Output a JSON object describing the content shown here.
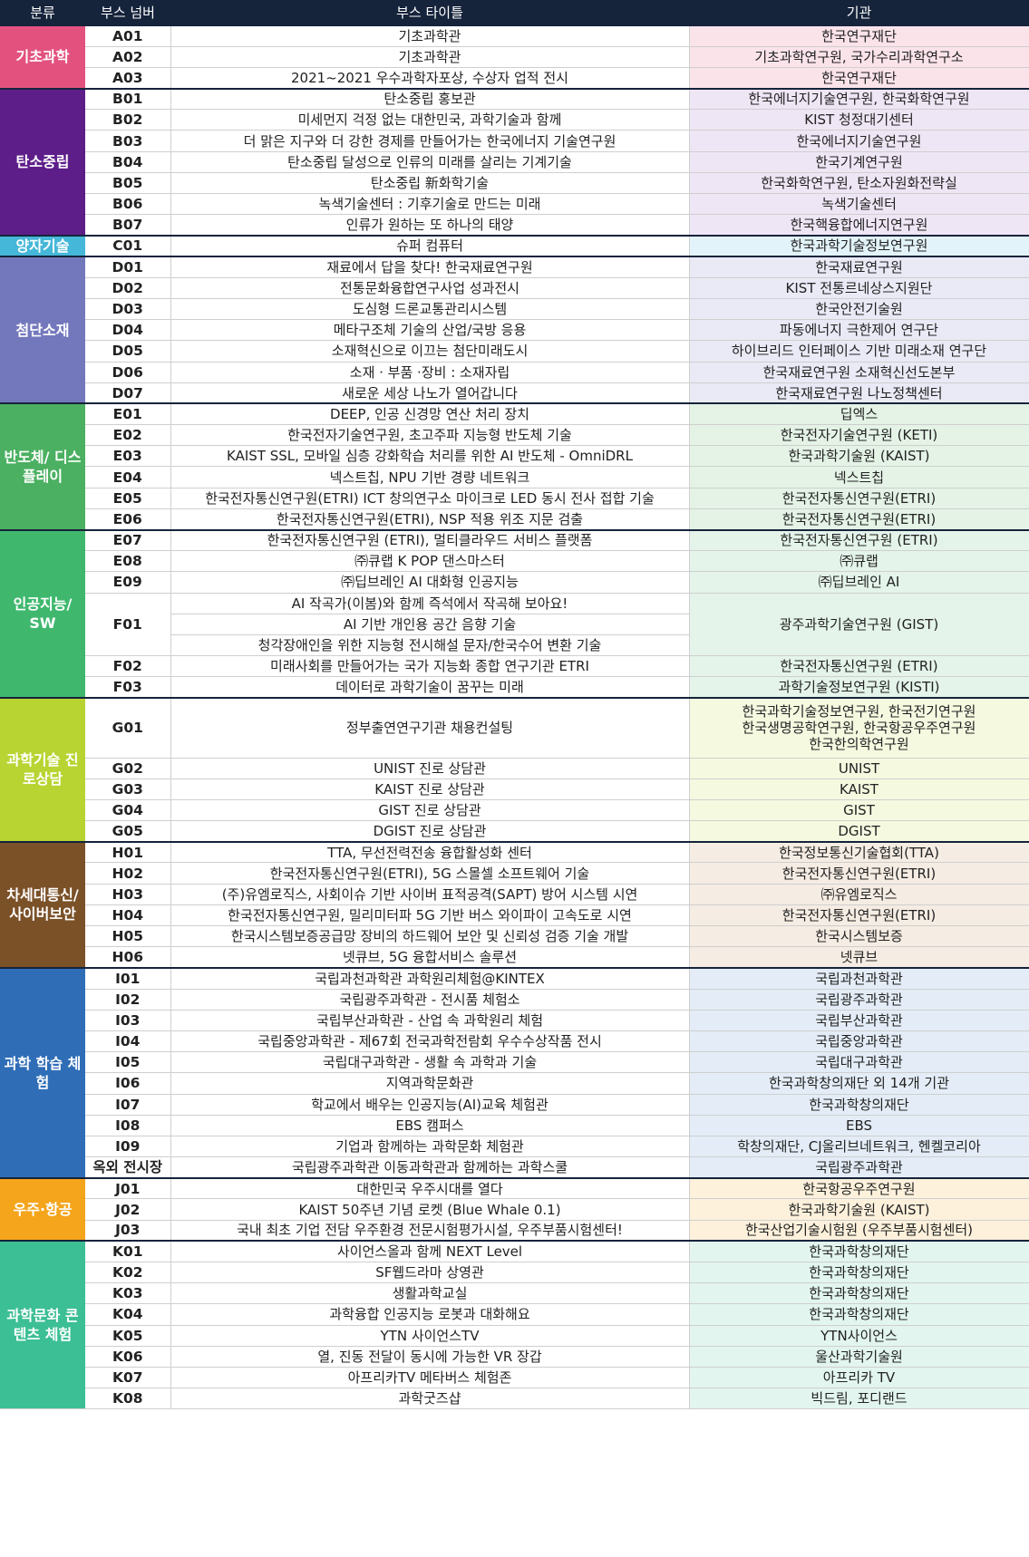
{
  "header": {
    "category": "분류",
    "booth_no": "부스 넘버",
    "booth_title": "부스 타이틀",
    "org": "기관"
  },
  "groups": [
    {
      "name": "기초과학",
      "color": "#e3527f",
      "tint": "#fbe3ea",
      "rows": [
        {
          "no": "A01",
          "title": "기초과학관",
          "org": "한국연구재단"
        },
        {
          "no": "A02",
          "title": "기초과학관",
          "org": "기초과학연구원, 국가수리과학연구소"
        },
        {
          "no": "A03",
          "title": "2021~2021 우수과학자포상, 수상자 업적 전시",
          "org": "한국연구재단"
        }
      ]
    },
    {
      "name": "탄소중립",
      "color": "#5e1e8a",
      "tint": "#efe6f5",
      "rows": [
        {
          "no": "B01",
          "title": "탄소중립 홍보관",
          "org": "한국에너지기술연구원, 한국화학연구원"
        },
        {
          "no": "B02",
          "title": "미세먼지 걱정 없는 대한민국, 과학기술과 함께",
          "org": "KIST 청정대기센터"
        },
        {
          "no": "B03",
          "title": "더 맑은 지구와 더 강한 경제를 만들어가는 한국에너지 기술연구원",
          "org": "한국에너지기술연구원"
        },
        {
          "no": "B04",
          "title": "탄소중립 달성으로 인류의 미래를 살리는 기계기술",
          "org": "한국기계연구원"
        },
        {
          "no": "B05",
          "title": "탄소중립 新화학기술",
          "org": "한국화학연구원, 탄소자원화전략실"
        },
        {
          "no": "B06",
          "title": "녹색기술센터 : 기후기술로 만드는 미래",
          "org": "녹색기술센터"
        },
        {
          "no": "B07",
          "title": "인류가 원하는 또 하나의 태양",
          "org": "한국핵융합에너지연구원"
        }
      ]
    },
    {
      "name": "양자기술",
      "color": "#45b7d8",
      "tint": "#e2f3fa",
      "rows": [
        {
          "no": "C01",
          "title": "슈퍼 컴퓨터",
          "org": "한국과학기술정보연구원"
        }
      ]
    },
    {
      "name": "첨단소재",
      "color": "#7378bd",
      "tint": "#e9eaf6",
      "rows": [
        {
          "no": "D01",
          "title": "재료에서 답을 찾다! 한국재료연구원",
          "org": "한국재료연구원"
        },
        {
          "no": "D02",
          "title": "전통문화융합연구사업 성과전시",
          "org": "KIST 전통르네상스지원단"
        },
        {
          "no": "D03",
          "title": "도심형 드론교통관리시스템",
          "org": "한국안전기술원"
        },
        {
          "no": "D04",
          "title": "메타구조체 기술의 산업/국방 응용",
          "org": "파동에너지 극한제어 연구단"
        },
        {
          "no": "D05",
          "title": "소재혁신으로 이끄는 첨단미래도시",
          "org": "하이브리드 인터페이스 기반 미래소재 연구단"
        },
        {
          "no": "D06",
          "title": "소재 · 부품 ·장비 : 소재자립",
          "org": "한국재료연구원 소재혁신선도본부"
        },
        {
          "no": "D07",
          "title": "새로운 세상 나노가 열어갑니다",
          "org": "한국재료연구원 나노정책센터"
        }
      ]
    },
    {
      "name": "반도체/\n디스플레이",
      "color": "#4bb061",
      "tint": "#e4f3e6",
      "rows": [
        {
          "no": "E01",
          "title": "DEEP, 인공 신경망 연산 처리 장치",
          "org": "딥엑스"
        },
        {
          "no": "E02",
          "title": "한국전자기술연구원, 초고주파 지능형 반도체 기술",
          "org": "한국전자기술연구원 (KETI)"
        },
        {
          "no": "E03",
          "title": "KAIST SSL, 모바일 심층 강화학습 처리를 위한 AI 반도체 - OmniDRL",
          "org": "한국과학기술원 (KAIST)"
        },
        {
          "no": "E04",
          "title": "넥스트칩, NPU 기반 경량 네트워크",
          "org": "넥스트칩"
        },
        {
          "no": "E05",
          "title": "한국전자통신연구원(ETRI) ICT 창의연구소 마이크로 LED 동시 전사 접합 기술",
          "org": "한국전자통신연구원(ETRI)"
        },
        {
          "no": "E06",
          "title": "한국전자통신연구원(ETRI), NSP 적용 위조 지문 검출",
          "org": "한국전자통신연구원(ETRI)"
        }
      ]
    },
    {
      "name": "인공지능/\nSW",
      "color": "#3fb86e",
      "tint": "#e4f4ea",
      "rows": [
        {
          "no": "E07",
          "title": "한국전자통신연구원 (ETRI), 멀티클라우드 서비스 플랫폼",
          "org": "한국전자통신연구원 (ETRI)"
        },
        {
          "no": "E08",
          "title": "㈜큐랩 K POP 댄스마스터",
          "org": "㈜큐랩"
        },
        {
          "no": "E09",
          "title": "㈜딥브레인 AI 대화형 인공지능",
          "org": "㈜딥브레인 AI"
        },
        {
          "no": "F01",
          "titles": [
            "AI 작곡가(이봄)와 함께 즉석에서 작곡해 보아요!",
            "AI 기반 개인용 공간 음향 기술",
            "청각장애인을 위한 지능형 전시해설 문자/한국수어 변환 기술"
          ],
          "org": "광주과학기술연구원 (GIST)"
        },
        {
          "no": "F02",
          "title": "미래사회를 만들어가는 국가 지능화 종합 연구기관 ETRI",
          "org": "한국전자통신연구원 (ETRI)"
        },
        {
          "no": "F03",
          "title": "데이터로 과학기술이 꿈꾸는 미래",
          "org": "과학기술정보연구원 (KISTI)"
        }
      ]
    },
    {
      "name": "과학기술\n진로상담",
      "color": "#b8d432",
      "tint": "#f5f9e0",
      "rows": [
        {
          "no": "G01",
          "title": "정부출연연구기관 채용컨설팅",
          "org": "한국과학기술정보연구원, 한국전기연구원\n한국생명공학연구원, 한국항공우주연구원\n한국한의학연구원",
          "tall": true
        },
        {
          "no": "G02",
          "title": "UNIST 진로 상담관",
          "org": "UNIST"
        },
        {
          "no": "G03",
          "title": "KAIST 진로 상담관",
          "org": "KAIST"
        },
        {
          "no": "G04",
          "title": "GIST 진로 상담관",
          "org": "GIST"
        },
        {
          "no": "G05",
          "title": "DGIST 진로 상담관",
          "org": "DGIST"
        }
      ]
    },
    {
      "name": "차세대통신/\n사이버보안",
      "color": "#7b5128",
      "tint": "#f5ece3",
      "rows": [
        {
          "no": "H01",
          "title": "TTA, 무선전력전송 융합활성화 센터",
          "org": "한국정보통신기술협회(TTA)"
        },
        {
          "no": "H02",
          "title": "한국전자통신연구원(ETRI), 5G 스몰셀 소프트웨어 기술",
          "org": "한국전자통신연구원(ETRI)"
        },
        {
          "no": "H03",
          "title": "(주)유엠로직스, 사회이슈 기반 사이버 표적공격(SAPT) 방어 시스템 시연",
          "org": "㈜유엠로직스"
        },
        {
          "no": "H04",
          "title": "한국전자통신연구원, 밀리미터파 5G 기반 버스 와이파이 고속도로 시연",
          "org": "한국전자통신연구원(ETRI)"
        },
        {
          "no": "H05",
          "title": "한국시스템보증공급망 장비의 하드웨어 보안 및 신뢰성 검증 기술 개발",
          "org": "한국시스템보증"
        },
        {
          "no": "H06",
          "title": "넷큐브, 5G 융합서비스 솔루션",
          "org": "넷큐브"
        }
      ]
    },
    {
      "name": "과학 학습\n체험",
      "color": "#2f6eb7",
      "tint": "#e4edf7",
      "rows": [
        {
          "no": "I01",
          "title": "국립과천과학관 과학원리체험@KINTEX",
          "org": "국립과천과학관"
        },
        {
          "no": "I02",
          "title": "국립광주과학관 - 전시품 체험소",
          "org": "국립광주과학관"
        },
        {
          "no": "I03",
          "title": "국립부산과학관 - 산업 속 과학원리 체험",
          "org": "국립부산과학관"
        },
        {
          "no": "I04",
          "title": "국립중앙과학관 - 제67회 전국과학전람회 우수수상작품 전시",
          "org": "국립중앙과학관"
        },
        {
          "no": "I05",
          "title": "국립대구과학관 - 생활 속 과학과 기술",
          "org": "국립대구과학관"
        },
        {
          "no": "I06",
          "title": "지역과학문화관",
          "org": "한국과학창의재단 외 14개 기관"
        },
        {
          "no": "I07",
          "title": "학교에서 배우는 인공지능(AI)교육 체험관",
          "org": "한국과학창의재단"
        },
        {
          "no": "I08",
          "title": "EBS 캠퍼스",
          "org": "EBS"
        },
        {
          "no": "I09",
          "title": "기업과 함께하는 과학문화 체험관",
          "org": "학창의재단, CJ올리브네트워크, 헨켈코리아"
        },
        {
          "no": "옥외 전시장",
          "title": "국립광주과학관 이동과학관과 함께하는 과학스쿨",
          "org": "국립광주과학관"
        }
      ]
    },
    {
      "name": "우주·항공",
      "color": "#f4a51c",
      "tint": "#fdf1dc",
      "rows": [
        {
          "no": "J01",
          "title": "대한민국 우주시대를 열다",
          "org": "한국항공우주연구원"
        },
        {
          "no": "J02",
          "title": "KAIST 50주년 기념 로켓 (Blue Whale 0.1)",
          "org": "한국과학기술원 (KAIST)"
        },
        {
          "no": "J03",
          "title": "국내 최초 기업 전담 우주환경 전문시험평가시설, 우주부품시험센터!",
          "org": "한국산업기술시험원 (우주부품시험센터)"
        }
      ]
    },
    {
      "name": "과학문화\n콘텐츠 체험",
      "color": "#3cbf94",
      "tint": "#e2f5ee",
      "rows": [
        {
          "no": "K01",
          "title": "사이언스올과 함께 NEXT Level",
          "org": "한국과학창의재단"
        },
        {
          "no": "K02",
          "title": "SF웹드라마 상영관",
          "org": "한국과학창의재단"
        },
        {
          "no": "K03",
          "title": "생활과학교실",
          "org": "한국과학창의재단"
        },
        {
          "no": "K04",
          "title": "과학융합 인공지능 로봇과 대화해요",
          "org": "한국과학창의재단"
        },
        {
          "no": "K05",
          "title": "YTN 사이언스TV",
          "org": "YTN사이언스"
        },
        {
          "no": "K06",
          "title": "열, 진동 전달이 동시에 가능한 VR 장갑",
          "org": "울산과학기술원"
        },
        {
          "no": "K07",
          "title": "아프리카TV 메타버스 체험존",
          "org": "아프리카 TV"
        },
        {
          "no": "K08",
          "title": "과학굿즈샵",
          "org": "빅드림, 포디랜드"
        }
      ]
    }
  ]
}
